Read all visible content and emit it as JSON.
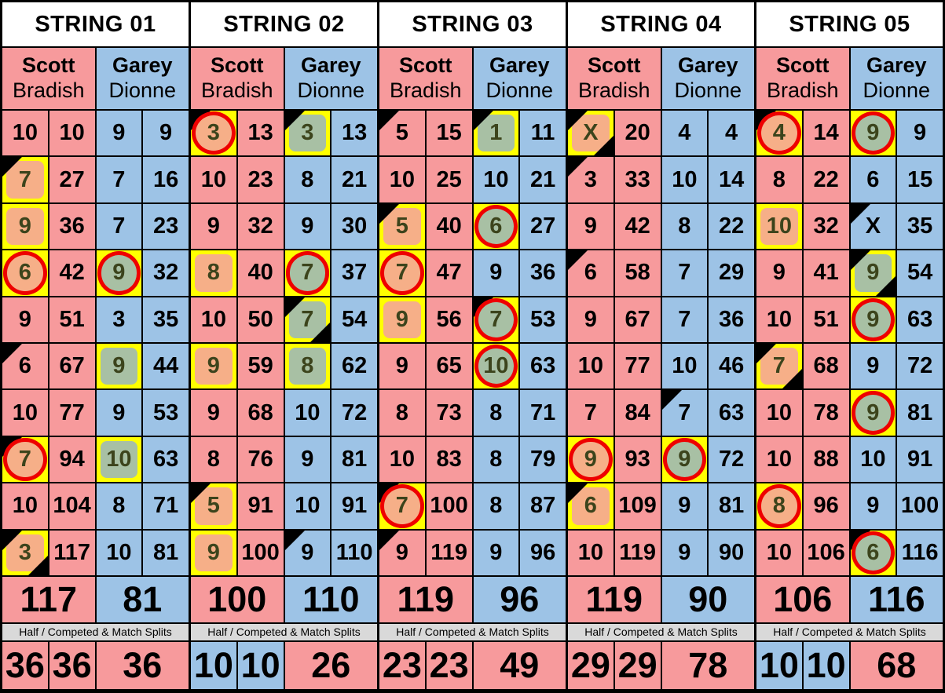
{
  "colors": {
    "pink": "#F79A9C",
    "blue": "#9DC3E6",
    "spare_box_yellow": "#FFFF00",
    "spare_fill_orange": "#F6AF88",
    "spare_fill_green": "#A8C0A4",
    "split_ring_red": "#EE0000",
    "marked_number_text": "#3C441C",
    "divider_bar_bg": "#D9D9D9",
    "grid_lines": "#000000",
    "header_bg": "#FFFFFF"
  },
  "divider_label": "Half / Competed & Match Splits",
  "strings": [
    {
      "title": "STRING 01",
      "players": [
        {
          "first": "Scott",
          "last": "Bradish",
          "team": "pink",
          "total": "117",
          "frames": [
            [
              "10",
              "10",
              ""
            ],
            [
              "7",
              "27",
              "sq tl"
            ],
            [
              "9",
              "36",
              "sq"
            ],
            [
              "6",
              "42",
              "ci"
            ],
            [
              "9",
              "51",
              ""
            ],
            [
              "6",
              "67",
              "tl"
            ],
            [
              "10",
              "77",
              ""
            ],
            [
              "7",
              "94",
              "ci tl"
            ],
            [
              "10",
              "104",
              ""
            ],
            [
              "3",
              "117",
              "sq tl br"
            ]
          ]
        },
        {
          "first": "Garey",
          "last": "Dionne",
          "team": "blue",
          "total": "81",
          "frames": [
            [
              "9",
              "9",
              ""
            ],
            [
              "7",
              "16",
              ""
            ],
            [
              "7",
              "23",
              ""
            ],
            [
              "9",
              "32",
              "ci"
            ],
            [
              "3",
              "35",
              ""
            ],
            [
              "9",
              "44",
              "sq"
            ],
            [
              "9",
              "53",
              ""
            ],
            [
              "10",
              "63",
              "sq"
            ],
            [
              "8",
              "71",
              ""
            ],
            [
              "10",
              "81",
              ""
            ]
          ]
        }
      ],
      "splits": [
        {
          "v": "36",
          "c": "pink"
        },
        {
          "v": "36",
          "c": "pink"
        },
        {
          "v": "36",
          "c": "pink"
        }
      ]
    },
    {
      "title": "STRING 02",
      "players": [
        {
          "first": "Scott",
          "last": "Bradish",
          "team": "pink",
          "total": "100",
          "frames": [
            [
              "3",
              "13",
              "ci tl"
            ],
            [
              "10",
              "23",
              ""
            ],
            [
              "9",
              "32",
              ""
            ],
            [
              "8",
              "40",
              "sq"
            ],
            [
              "10",
              "50",
              ""
            ],
            [
              "9",
              "59",
              "sq"
            ],
            [
              "9",
              "68",
              ""
            ],
            [
              "8",
              "76",
              ""
            ],
            [
              "5",
              "91",
              "sq tl"
            ],
            [
              "9",
              "100",
              "sq"
            ]
          ]
        },
        {
          "first": "Garey",
          "last": "Dionne",
          "team": "blue",
          "total": "110",
          "frames": [
            [
              "3",
              "13",
              "sq tl"
            ],
            [
              "8",
              "21",
              ""
            ],
            [
              "9",
              "30",
              ""
            ],
            [
              "7",
              "37",
              "ci"
            ],
            [
              "7",
              "54",
              "sq tl br"
            ],
            [
              "8",
              "62",
              "sq"
            ],
            [
              "10",
              "72",
              ""
            ],
            [
              "9",
              "81",
              ""
            ],
            [
              "10",
              "91",
              ""
            ],
            [
              "9",
              "110",
              "tl"
            ]
          ]
        }
      ],
      "splits": [
        {
          "v": "10",
          "c": "blue"
        },
        {
          "v": "10",
          "c": "blue"
        },
        {
          "v": "26",
          "c": "pink"
        }
      ]
    },
    {
      "title": "STRING 03",
      "players": [
        {
          "first": "Scott",
          "last": "Bradish",
          "team": "pink",
          "total": "119",
          "frames": [
            [
              "5",
              "15",
              "tl"
            ],
            [
              "10",
              "25",
              ""
            ],
            [
              "5",
              "40",
              "sq tl"
            ],
            [
              "7",
              "47",
              "ci"
            ],
            [
              "9",
              "56",
              "sq"
            ],
            [
              "9",
              "65",
              ""
            ],
            [
              "8",
              "73",
              ""
            ],
            [
              "10",
              "83",
              ""
            ],
            [
              "7",
              "100",
              "ci tl"
            ],
            [
              "9",
              "119",
              "tl"
            ]
          ]
        },
        {
          "first": "Garey",
          "last": "Dionne",
          "team": "blue",
          "total": "96",
          "frames": [
            [
              "1",
              "11",
              "sq tl"
            ],
            [
              "10",
              "21",
              ""
            ],
            [
              "6",
              "27",
              "ci"
            ],
            [
              "9",
              "36",
              ""
            ],
            [
              "7",
              "53",
              "ci tl"
            ],
            [
              "10",
              "63",
              "ci"
            ],
            [
              "8",
              "71",
              ""
            ],
            [
              "8",
              "79",
              ""
            ],
            [
              "8",
              "87",
              ""
            ],
            [
              "9",
              "96",
              ""
            ]
          ]
        }
      ],
      "splits": [
        {
          "v": "23",
          "c": "pink"
        },
        {
          "v": "23",
          "c": "pink"
        },
        {
          "v": "49",
          "c": "pink"
        }
      ]
    },
    {
      "title": "STRING 04",
      "players": [
        {
          "first": "Scott",
          "last": "Bradish",
          "team": "pink",
          "total": "119",
          "frames": [
            [
              "X",
              "20",
              "sq tl br"
            ],
            [
              "3",
              "33",
              "tl"
            ],
            [
              "9",
              "42",
              ""
            ],
            [
              "6",
              "58",
              "tl"
            ],
            [
              "9",
              "67",
              ""
            ],
            [
              "10",
              "77",
              ""
            ],
            [
              "7",
              "84",
              ""
            ],
            [
              "9",
              "93",
              "ci"
            ],
            [
              "6",
              "109",
              "sq tl"
            ],
            [
              "10",
              "119",
              ""
            ]
          ]
        },
        {
          "first": "Garey",
          "last": "Dionne",
          "team": "blue",
          "total": "90",
          "frames": [
            [
              "4",
              "4",
              ""
            ],
            [
              "10",
              "14",
              ""
            ],
            [
              "8",
              "22",
              ""
            ],
            [
              "7",
              "29",
              ""
            ],
            [
              "7",
              "36",
              ""
            ],
            [
              "10",
              "46",
              ""
            ],
            [
              "7",
              "63",
              "tl"
            ],
            [
              "9",
              "72",
              "ci"
            ],
            [
              "9",
              "81",
              ""
            ],
            [
              "9",
              "90",
              ""
            ]
          ]
        }
      ],
      "splits": [
        {
          "v": "29",
          "c": "pink"
        },
        {
          "v": "29",
          "c": "pink"
        },
        {
          "v": "78",
          "c": "pink"
        }
      ]
    },
    {
      "title": "STRING 05",
      "players": [
        {
          "first": "Scott",
          "last": "Bradish",
          "team": "pink",
          "total": "106",
          "frames": [
            [
              "4",
              "14",
              "ci tl"
            ],
            [
              "8",
              "22",
              ""
            ],
            [
              "10",
              "32",
              "sq"
            ],
            [
              "9",
              "41",
              ""
            ],
            [
              "10",
              "51",
              ""
            ],
            [
              "7",
              "68",
              "sq tl br"
            ],
            [
              "10",
              "78",
              ""
            ],
            [
              "10",
              "88",
              ""
            ],
            [
              "8",
              "96",
              "ci"
            ],
            [
              "10",
              "106",
              ""
            ]
          ]
        },
        {
          "first": "Garey",
          "last": "Dionne",
          "team": "blue",
          "total": "116",
          "frames": [
            [
              "9",
              "9",
              "ci"
            ],
            [
              "6",
              "15",
              ""
            ],
            [
              "X",
              "35",
              "tl"
            ],
            [
              "9",
              "54",
              "sq tl br"
            ],
            [
              "9",
              "63",
              "ci"
            ],
            [
              "9",
              "72",
              ""
            ],
            [
              "9",
              "81",
              "ci"
            ],
            [
              "10",
              "91",
              ""
            ],
            [
              "9",
              "100",
              ""
            ],
            [
              "6",
              "116",
              "ci tl"
            ]
          ]
        }
      ],
      "splits": [
        {
          "v": "10",
          "c": "blue"
        },
        {
          "v": "10",
          "c": "blue"
        },
        {
          "v": "68",
          "c": "pink"
        }
      ]
    }
  ]
}
